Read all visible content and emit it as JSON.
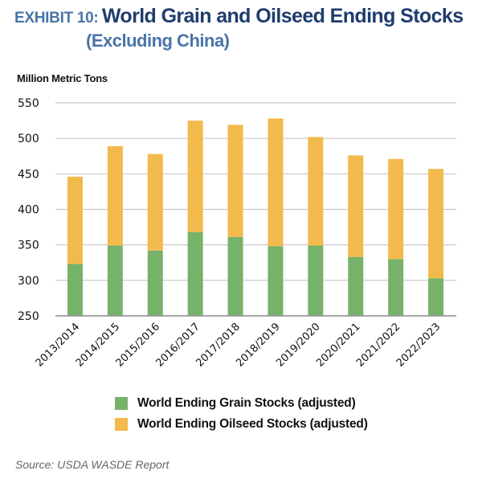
{
  "header": {
    "exhibit": "EXHIBIT 10:",
    "title": "World Grain and Oilseed Ending Stocks",
    "subtitle": "(Excluding China)"
  },
  "colors": {
    "exhibit": "#4A74A8",
    "title": "#1F3C6E",
    "grain": "#77B26A",
    "oilseed": "#F2BA4C",
    "grid": "#C8C8C8",
    "axis": "#999999"
  },
  "source": "Source: USDA WASDE Report",
  "chart_data": {
    "type": "bar",
    "stacked": true,
    "title": "World Grain and Oilseed Ending Stocks (Excluding China)",
    "xlabel": "",
    "ylabel": "Million Metric Tons",
    "ylim": [
      250,
      550
    ],
    "yticks": [
      250,
      300,
      350,
      400,
      450,
      500,
      550
    ],
    "grid": true,
    "legend_position": "bottom",
    "categories": [
      "2013/2014",
      "2014/2015",
      "2015/2016",
      "2016/2017",
      "2017/2018",
      "2018/2019",
      "2019/2020",
      "2020/2021",
      "2021/2022",
      "2022/2023"
    ],
    "series": [
      {
        "name": "World Ending Grain Stocks (adjusted)",
        "color": "#77B26A",
        "values": [
          323,
          349,
          342,
          368,
          361,
          348,
          349,
          333,
          330,
          303
        ]
      },
      {
        "name": "World Ending Oilseed Stocks (adjusted)",
        "color": "#F2BA4C",
        "values": [
          123,
          140,
          136,
          157,
          158,
          180,
          153,
          143,
          141,
          154
        ]
      }
    ],
    "totals": [
      446,
      489,
      478,
      525,
      519,
      528,
      502,
      476,
      471,
      457
    ]
  }
}
